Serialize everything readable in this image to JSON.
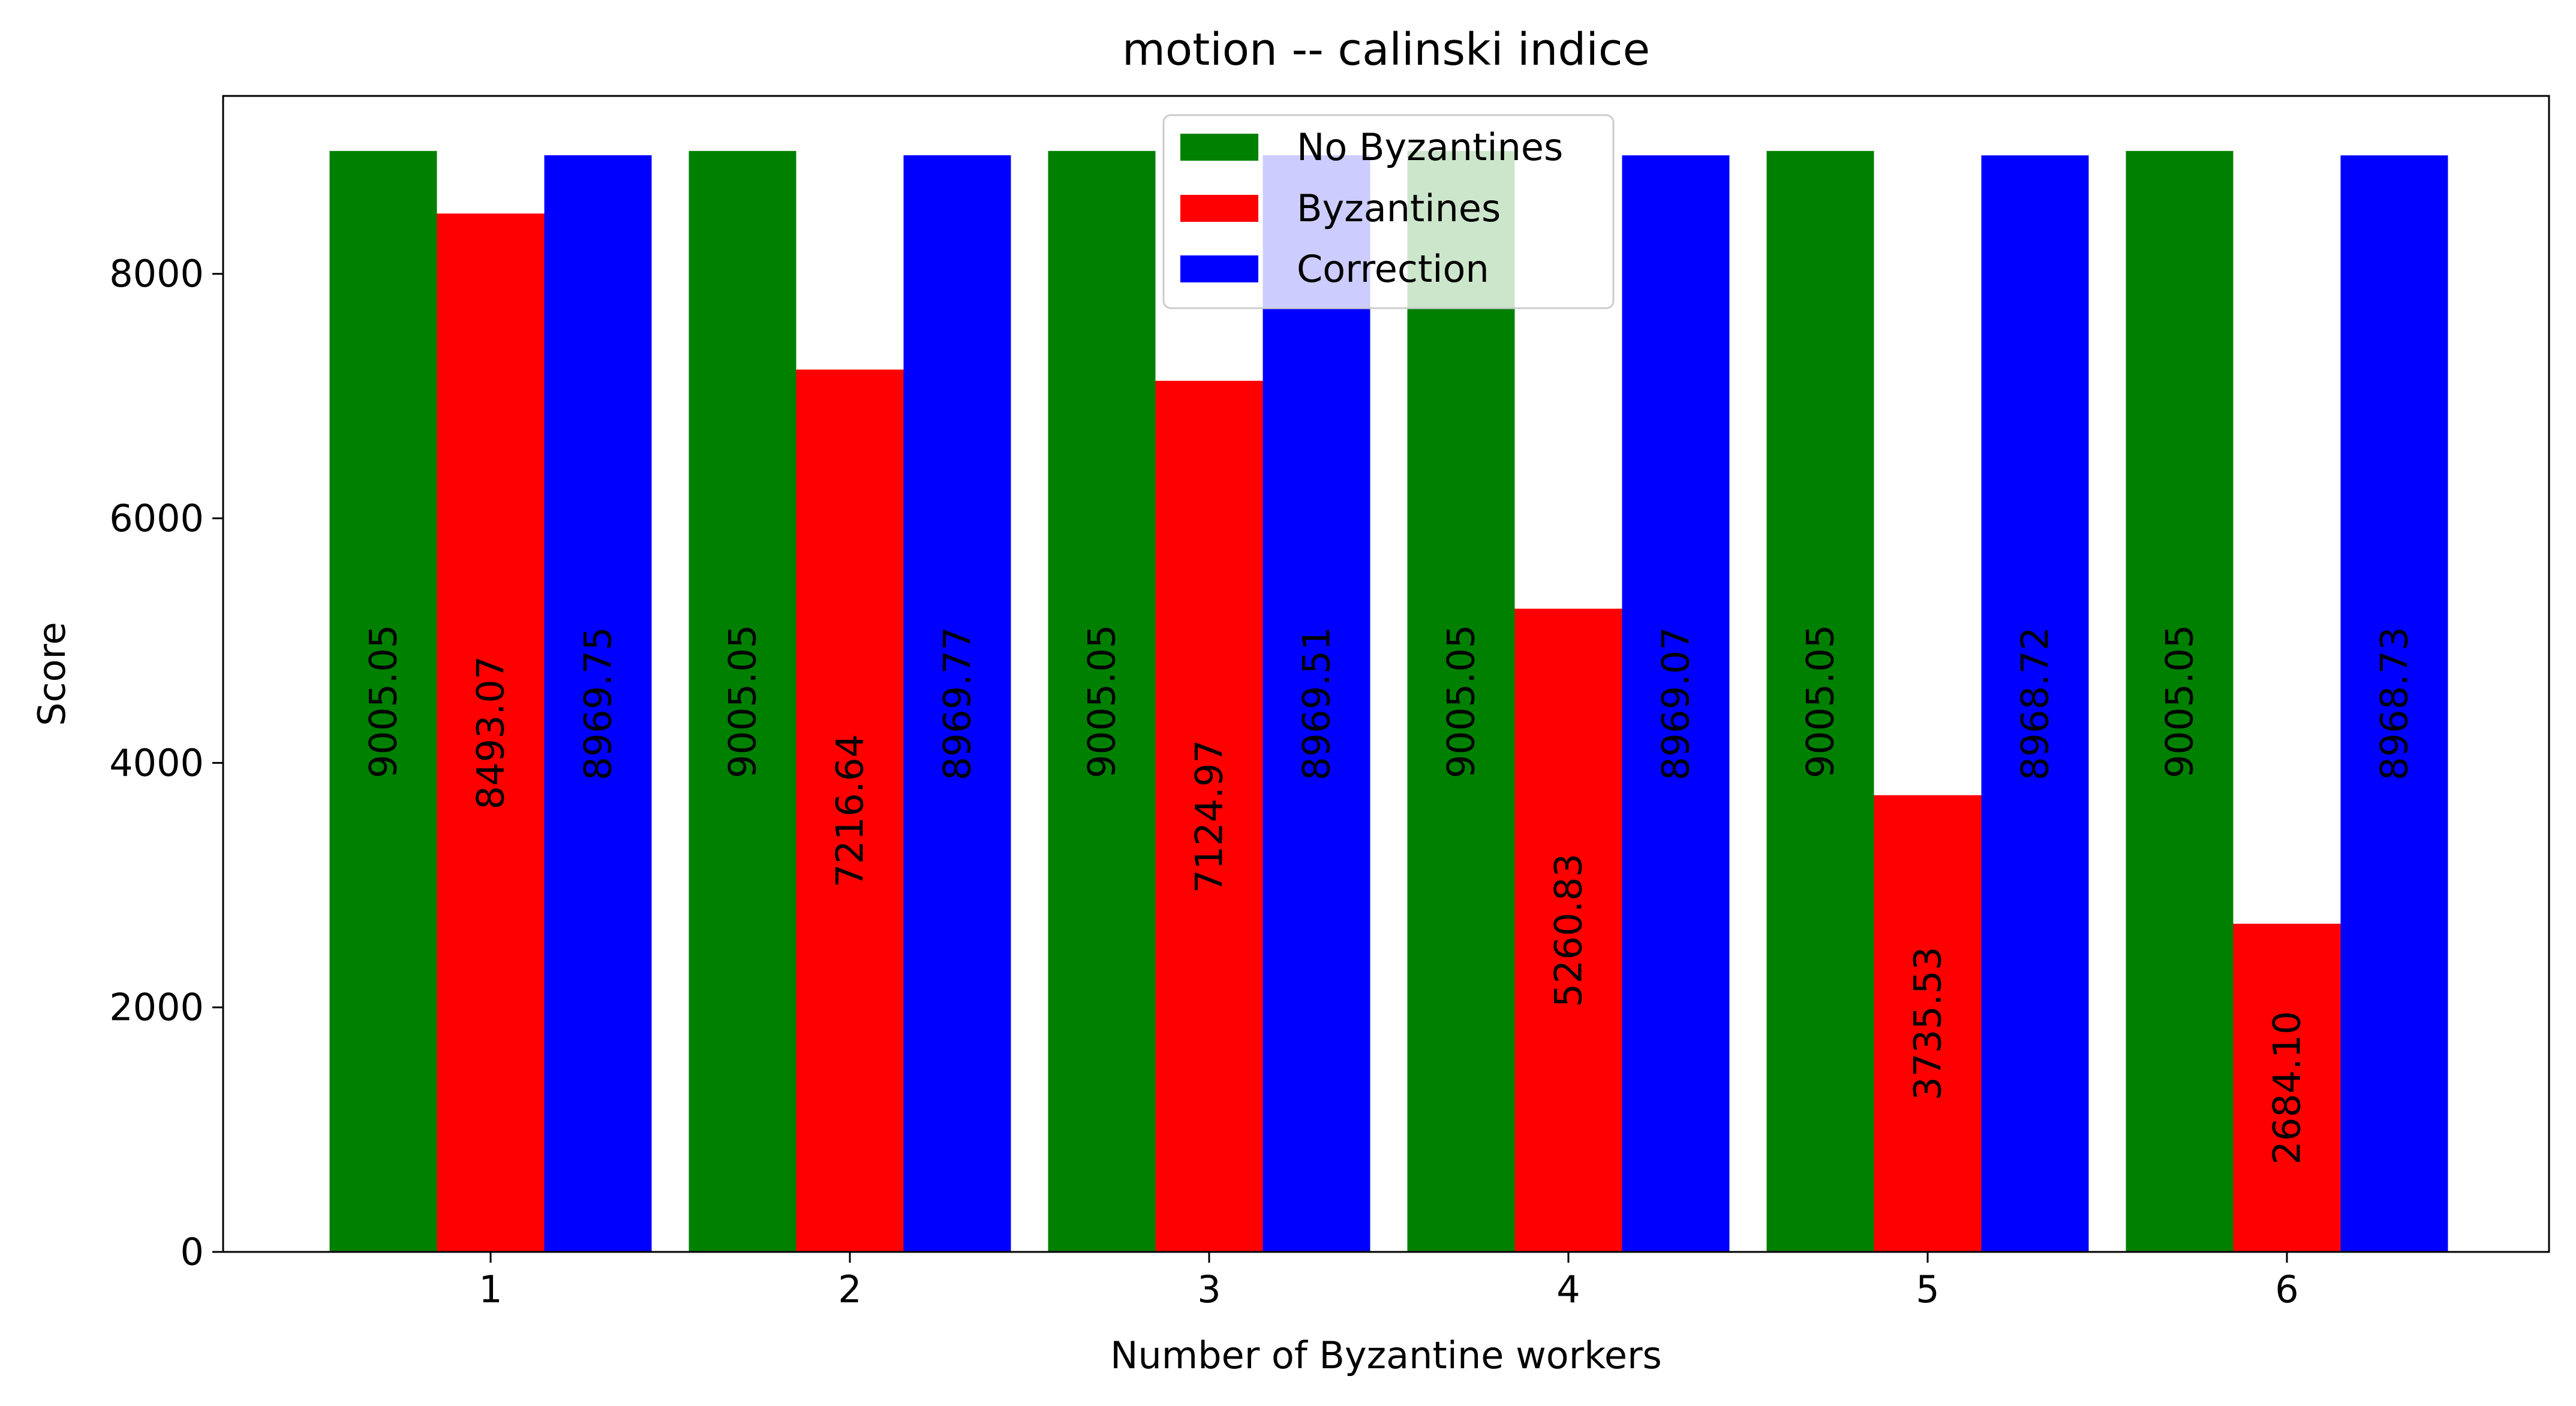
{
  "chart_data": {
    "type": "bar",
    "title": "motion -- calinski indice",
    "xlabel": "Number of Byzantine workers",
    "ylabel": "Score",
    "categories": [
      "1",
      "2",
      "3",
      "4",
      "5",
      "6"
    ],
    "series": [
      {
        "name": "No Byzantines",
        "color": "#008000",
        "values": [
          9005.05,
          9005.05,
          9005.05,
          9005.05,
          9005.05,
          9005.05
        ],
        "labels": [
          "9005.05",
          "9005.05",
          "9005.05",
          "9005.05",
          "9005.05",
          "9005.05"
        ]
      },
      {
        "name": "Byzantines",
        "color": "#ff0000",
        "values": [
          8493.07,
          7216.64,
          7124.97,
          5260.83,
          3735.53,
          2684.1
        ],
        "labels": [
          "8493.07",
          "7216.64",
          "7124.97",
          "5260.83",
          "3735.53",
          "2684.10"
        ]
      },
      {
        "name": "Correction",
        "color": "#0000ff",
        "values": [
          8969.75,
          8969.77,
          8969.51,
          8969.07,
          8968.72,
          8968.73
        ],
        "labels": [
          "8969.75",
          "8969.77",
          "8969.51",
          "8969.07",
          "8968.72",
          "8968.73"
        ]
      }
    ],
    "y_ticks": [
      0,
      2000,
      4000,
      6000,
      8000
    ],
    "y_tick_labels": [
      "0",
      "2000",
      "4000",
      "6000",
      "8000"
    ],
    "ylim": [
      0,
      9455
    ],
    "grid": false,
    "legend_position": "top-center"
  }
}
